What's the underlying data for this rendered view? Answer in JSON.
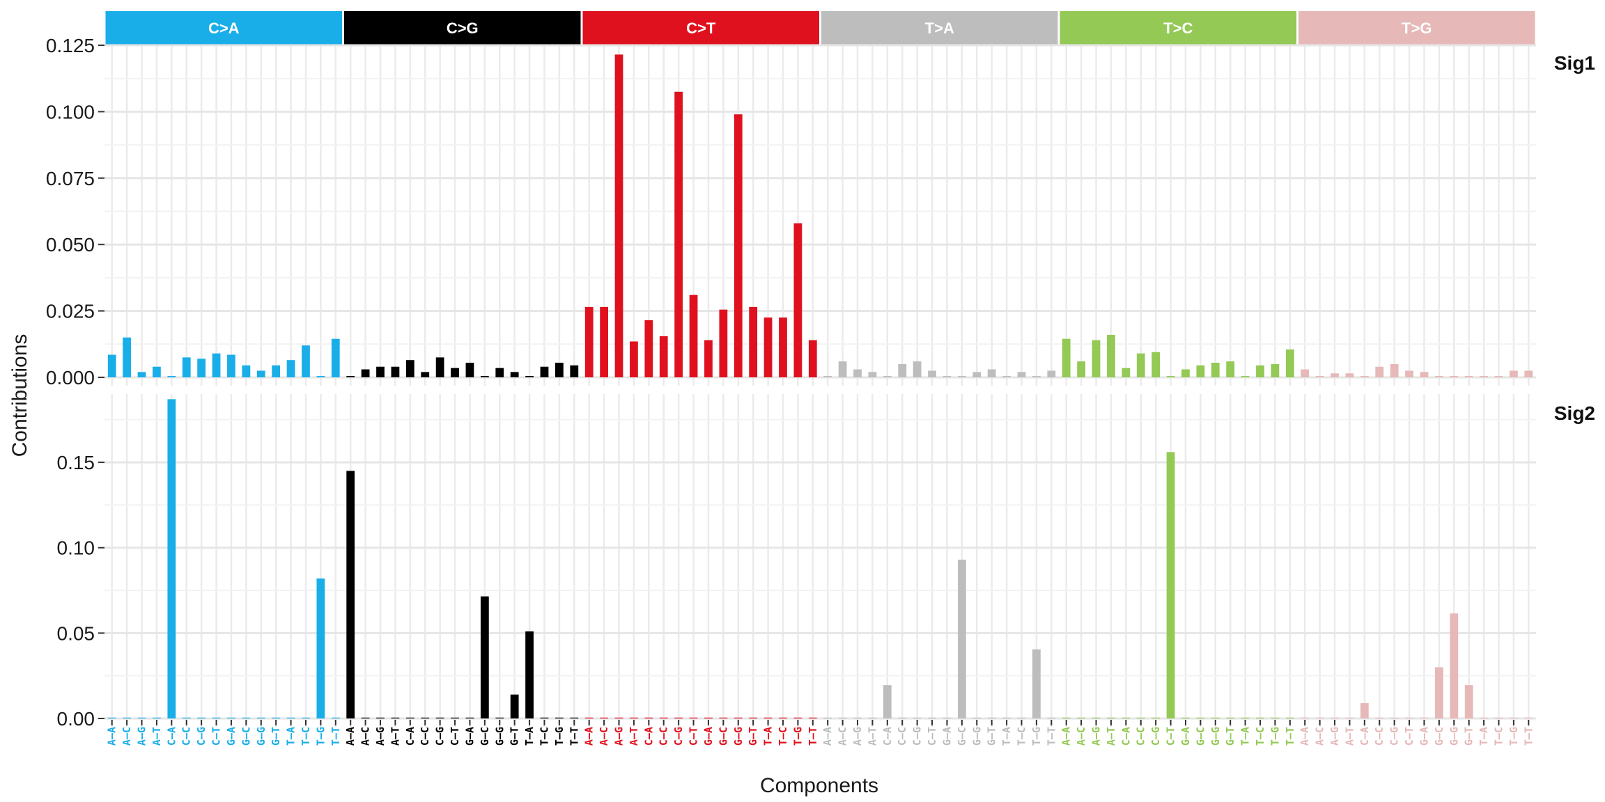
{
  "chart_data": {
    "type": "bar",
    "ylabel": "Contributions",
    "xlabel": "Components",
    "grid": true,
    "mutation_types": [
      {
        "name": "C>A",
        "color": "#1aaee8"
      },
      {
        "name": "C>G",
        "color": "#000000"
      },
      {
        "name": "C>T",
        "color": "#e0111e"
      },
      {
        "name": "T>A",
        "color": "#bdbdbd"
      },
      {
        "name": "T>C",
        "color": "#93c954"
      },
      {
        "name": "T>G",
        "color": "#e6b8b8"
      }
    ],
    "contexts": [
      "A–A",
      "A–C",
      "A–G",
      "A–T",
      "C–A",
      "C–C",
      "C–G",
      "C–T",
      "G–A",
      "G–C",
      "G–G",
      "G–T",
      "T–A",
      "T–C",
      "T–G",
      "T–T"
    ],
    "panels": [
      {
        "name": "Sig1",
        "ylim": [
          0,
          0.125
        ],
        "yticks": [
          0,
          0.025,
          0.05,
          0.075,
          0.1,
          0.125
        ],
        "ytick_labels": [
          "0.000",
          "0.025",
          "0.050",
          "0.075",
          "0.100",
          "0.125"
        ],
        "values": [
          0.0085,
          0.015,
          0.002,
          0.004,
          0.0005,
          0.0075,
          0.007,
          0.009,
          0.0085,
          0.0045,
          0.0025,
          0.0045,
          0.0065,
          0.012,
          0.0005,
          0.0145,
          0.0005,
          0.003,
          0.004,
          0.004,
          0.0065,
          0.002,
          0.0075,
          0.0035,
          0.0055,
          0.0005,
          0.0035,
          0.002,
          0.0005,
          0.004,
          0.0055,
          0.0045,
          0.0265,
          0.0265,
          0.1215,
          0.0135,
          0.0215,
          0.0155,
          0.1075,
          0.031,
          0.014,
          0.0255,
          0.099,
          0.0265,
          0.0225,
          0.0225,
          0.058,
          0.014,
          0.0005,
          0.006,
          0.003,
          0.002,
          0.0005,
          0.005,
          0.006,
          0.0025,
          0.0005,
          0.0005,
          0.002,
          0.003,
          0.0005,
          0.002,
          0.0005,
          0.0025,
          0.0145,
          0.006,
          0.014,
          0.016,
          0.0035,
          0.009,
          0.0095,
          0.0005,
          0.003,
          0.0045,
          0.0055,
          0.006,
          0.0005,
          0.0045,
          0.005,
          0.0105,
          0.003,
          0.0005,
          0.0015,
          0.0015,
          0.0005,
          0.004,
          0.005,
          0.0025,
          0.002,
          0.0005,
          0.0005,
          0.0005,
          0.0005,
          0.0005,
          0.0025,
          0.0025
        ]
      },
      {
        "name": "Sig2",
        "ylim": [
          0,
          0.19
        ],
        "yticks": [
          0,
          0.05,
          0.1,
          0.15
        ],
        "ytick_labels": [
          "0.00",
          "0.05",
          "0.10",
          "0.15"
        ],
        "values": [
          0.0005,
          0.0005,
          0.0005,
          0.0005,
          0.187,
          0.0005,
          0.0005,
          0.0005,
          0.0005,
          0.0005,
          0.0005,
          0.0005,
          0.0005,
          0.0005,
          0.082,
          0.0005,
          0.145,
          0.0005,
          0.0005,
          0.0005,
          0.0005,
          0.0005,
          0.0005,
          0.0005,
          0.0005,
          0.0715,
          0.0005,
          0.014,
          0.051,
          0.0005,
          0.0005,
          0.0005,
          0.0005,
          0.0005,
          0.0005,
          0.0005,
          0.0005,
          0.0005,
          0.0005,
          0.0005,
          0.0005,
          0.0005,
          0.0005,
          0.0005,
          0.0005,
          0.0005,
          0.0005,
          0.0005,
          0.0005,
          0.0005,
          0.0005,
          0.0005,
          0.0195,
          0.0005,
          0.0005,
          0.0005,
          0.0005,
          0.093,
          0.0005,
          0.0005,
          0.0005,
          0.0005,
          0.0405,
          0.0005,
          0.0005,
          0.0005,
          0.0005,
          0.0005,
          0.0005,
          0.0005,
          0.0005,
          0.156,
          0.0005,
          0.0005,
          0.0005,
          0.0005,
          0.0005,
          0.0005,
          0.0005,
          0.0005,
          0.0005,
          0.0005,
          0.0005,
          0.0005,
          0.009,
          0.0005,
          0.0005,
          0.0005,
          0.0005,
          0.03,
          0.0615,
          0.0195,
          0.0005,
          0.0005,
          0.0005,
          0.0005
        ]
      }
    ]
  }
}
